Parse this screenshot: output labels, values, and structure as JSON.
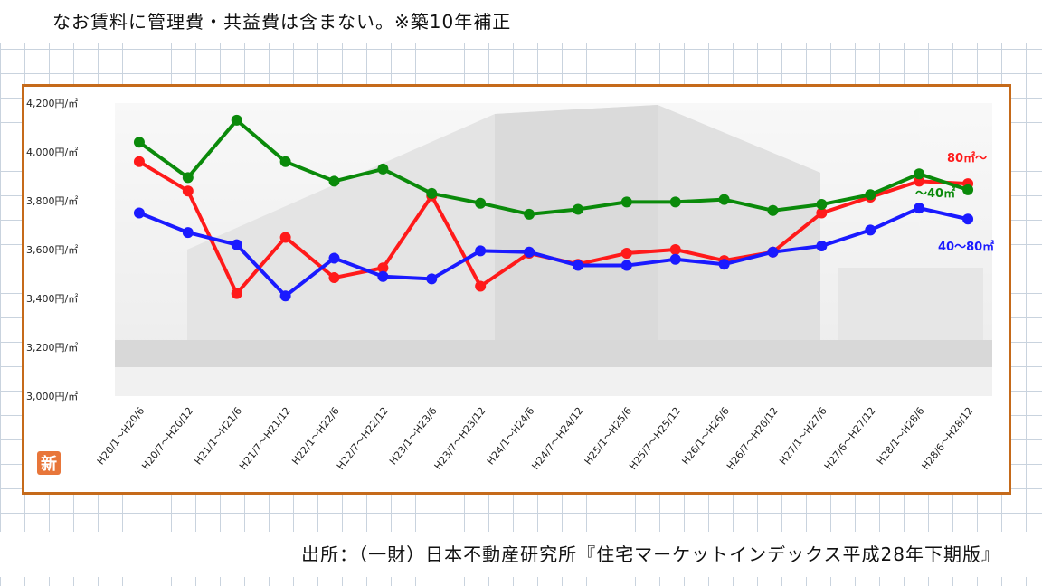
{
  "note": "なお賃料に管理費・共益費は含まない。※築10年補正",
  "source": "出所：（一財）日本不動産研究所『住宅マーケットインデックス平成28年下期版』",
  "badge": "新",
  "colors": {
    "frame": "#c56a1a",
    "red": "#ff1a1a",
    "green": "#0a8a0a",
    "blue": "#1a1aff",
    "badge": "#e8763a"
  },
  "chart_data": {
    "type": "line",
    "title": "",
    "xlabel": "",
    "ylabel": "",
    "ylim": [
      3000,
      4200
    ],
    "yticks": [
      3000,
      3200,
      3400,
      3600,
      3800,
      4000,
      4200
    ],
    "ytick_labels": [
      "3,000円/㎡",
      "3,200円/㎡",
      "3,400円/㎡",
      "3,600円/㎡",
      "3,800円/㎡",
      "4,000円/㎡",
      "4,200円/㎡"
    ],
    "categories": [
      "H20/1～H20/6",
      "H20/7～H20/12",
      "H21/1～H21/6",
      "H21/7～H21/12",
      "H22/1～H22/6",
      "H22/7～H22/12",
      "H23/1～H23/6",
      "H23/7～H23/12",
      "H24/1～H24/6",
      "H24/7～H24/12",
      "H25/1～H25/6",
      "H25/7～H25/12",
      "H26/1～H26/6",
      "H26/7～H26/12",
      "H27/1～H27/6",
      "H27/6～H27/12",
      "H28/1～H28/6",
      "H28/6～H28/12"
    ],
    "grid": false,
    "series": [
      {
        "name": "80㎡～",
        "color": "#ff1a1a",
        "label_color": "#ff1a1a",
        "values": [
          3960,
          3840,
          3420,
          3650,
          3485,
          3525,
          3820,
          3450,
          3585,
          3540,
          3585,
          3600,
          3555,
          3590,
          3750,
          3815,
          3880,
          3870
        ]
      },
      {
        "name": "～40㎡",
        "color": "#0a8a0a",
        "label_color": "#0a8a0a",
        "values": [
          4040,
          3895,
          4130,
          3960,
          3880,
          3930,
          3830,
          3790,
          3745,
          3765,
          3795,
          3795,
          3805,
          3760,
          3785,
          3825,
          3910,
          3845
        ]
      },
      {
        "name": "40～80㎡",
        "color": "#1a1aff",
        "label_color": "#1a1aff",
        "values": [
          3750,
          3670,
          3620,
          3410,
          3565,
          3490,
          3480,
          3595,
          3590,
          3535,
          3535,
          3560,
          3540,
          3590,
          3615,
          3680,
          3770,
          3725
        ]
      }
    ]
  }
}
